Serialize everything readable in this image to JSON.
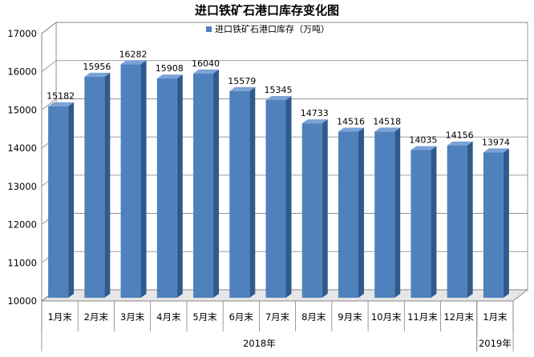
{
  "chart_data": {
    "type": "bar",
    "title": "进口铁矿石港口库存变化图",
    "legend": {
      "label": "进口铁矿石港口库存（万吨）",
      "position": "top"
    },
    "categories": [
      "1月末",
      "2月末",
      "3月末",
      "4月末",
      "5月末",
      "6月末",
      "7月末",
      "8月末",
      "9月末",
      "10月末",
      "11月末",
      "12月末",
      "1月末"
    ],
    "year_groups": [
      {
        "label": "2018年",
        "start": 0,
        "end": 11
      },
      {
        "label": "2019年",
        "start": 12,
        "end": 12
      }
    ],
    "series": [
      {
        "name": "进口铁矿石港口库存（万吨）",
        "values": [
          15182,
          15956,
          16282,
          15908,
          16040,
          15579,
          15345,
          14733,
          14516,
          14518,
          14035,
          14156,
          13974
        ]
      }
    ],
    "ylim": [
      10000,
      17000
    ],
    "yticks": [
      10000,
      11000,
      12000,
      13000,
      14000,
      15000,
      16000,
      17000
    ],
    "grid": true,
    "bar_color": "#4f81bd",
    "bar_side_color": "#2f5a8e",
    "bar_top_color": "#7ba3d6",
    "gridline_color": "#808080",
    "wall_color": "#e6e6e6"
  }
}
